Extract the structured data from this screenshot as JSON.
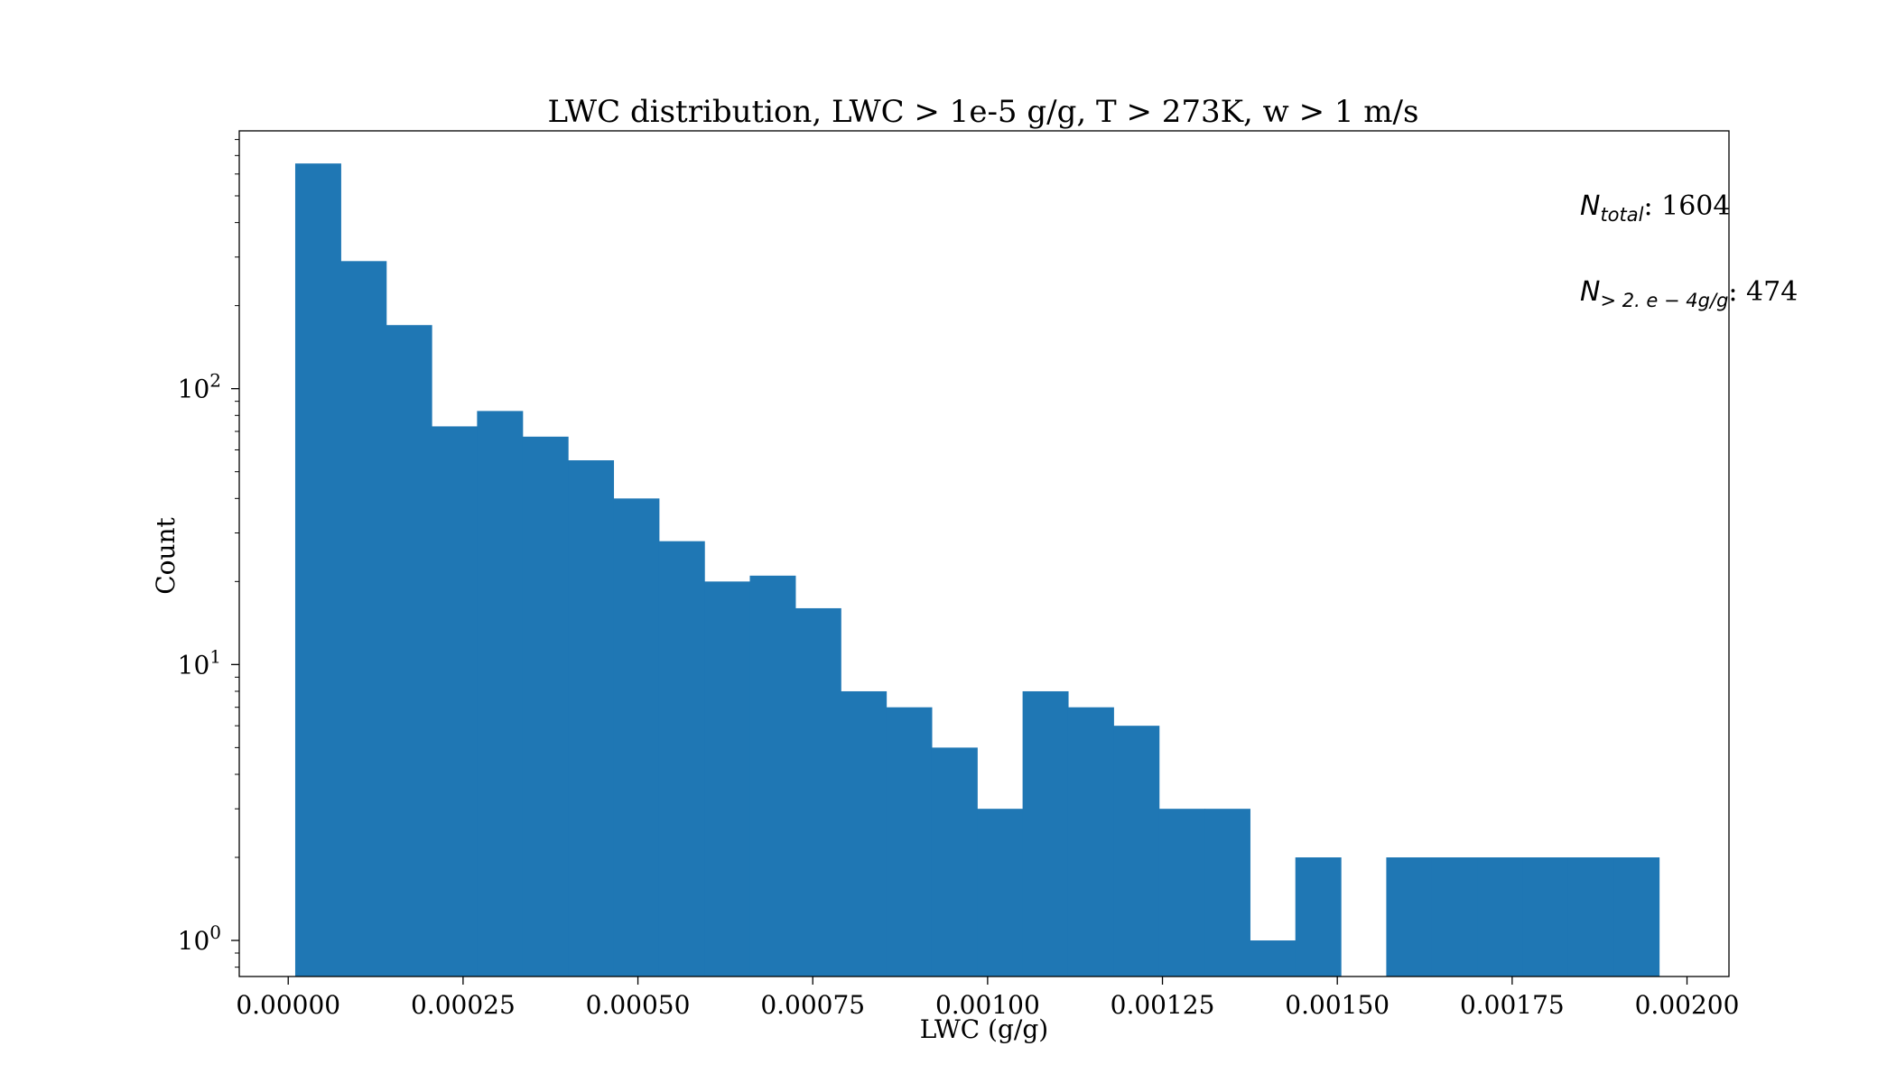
{
  "chart_data": {
    "type": "bar",
    "title": "LWC distribution, LWC > 1e-5 g/g, T > 273K, w > 1 m/s",
    "xlabel": "LWC (g/g)",
    "ylabel": "Count",
    "xscale": "linear",
    "yscale": "log",
    "xlim": [
      -7e-05,
      0.00206
    ],
    "ylim": [
      0.74,
      860
    ],
    "xticks": [
      0.0,
      0.00025,
      0.0005,
      0.00075,
      0.001,
      0.00125,
      0.0015,
      0.00175,
      0.002
    ],
    "xtick_labels": [
      "0.00000",
      "0.00025",
      "0.00050",
      "0.00075",
      "0.00100",
      "0.00125",
      "0.00150",
      "0.00175",
      "0.00200"
    ],
    "yticks": [
      {
        "value": 1,
        "base": "10",
        "exp": "0"
      },
      {
        "value": 10,
        "base": "10",
        "exp": "1"
      },
      {
        "value": 100,
        "base": "10",
        "exp": "2"
      }
    ],
    "bin_edges": [
      1e-05,
      7.5e-05,
      0.00014,
      0.000205,
      0.00027,
      0.000335,
      0.0004,
      0.000465,
      0.00053,
      0.000595,
      0.00066,
      0.000725,
      0.00079,
      0.000855,
      0.00092,
      0.000985,
      0.00105,
      0.001115,
      0.00118,
      0.001245,
      0.00131,
      0.001375,
      0.00144,
      0.001505,
      0.00157,
      0.001635,
      0.0017,
      0.001765,
      0.00183,
      0.001895,
      0.00196
    ],
    "counts": [
      655,
      290,
      170,
      73,
      83,
      67,
      55,
      40,
      28,
      20,
      21,
      16,
      8,
      7,
      5,
      3,
      8,
      7,
      6,
      3,
      3,
      1,
      2,
      0,
      2,
      2,
      2,
      2,
      2,
      2
    ],
    "bar_color": "#1f77b4",
    "grid": false,
    "annotations": [
      {
        "main": "N",
        "sub": "total",
        "value": ": 1604"
      },
      {
        "main": "N",
        "sub": "> 2. e − 4g/g",
        "value": ": 474"
      }
    ]
  }
}
